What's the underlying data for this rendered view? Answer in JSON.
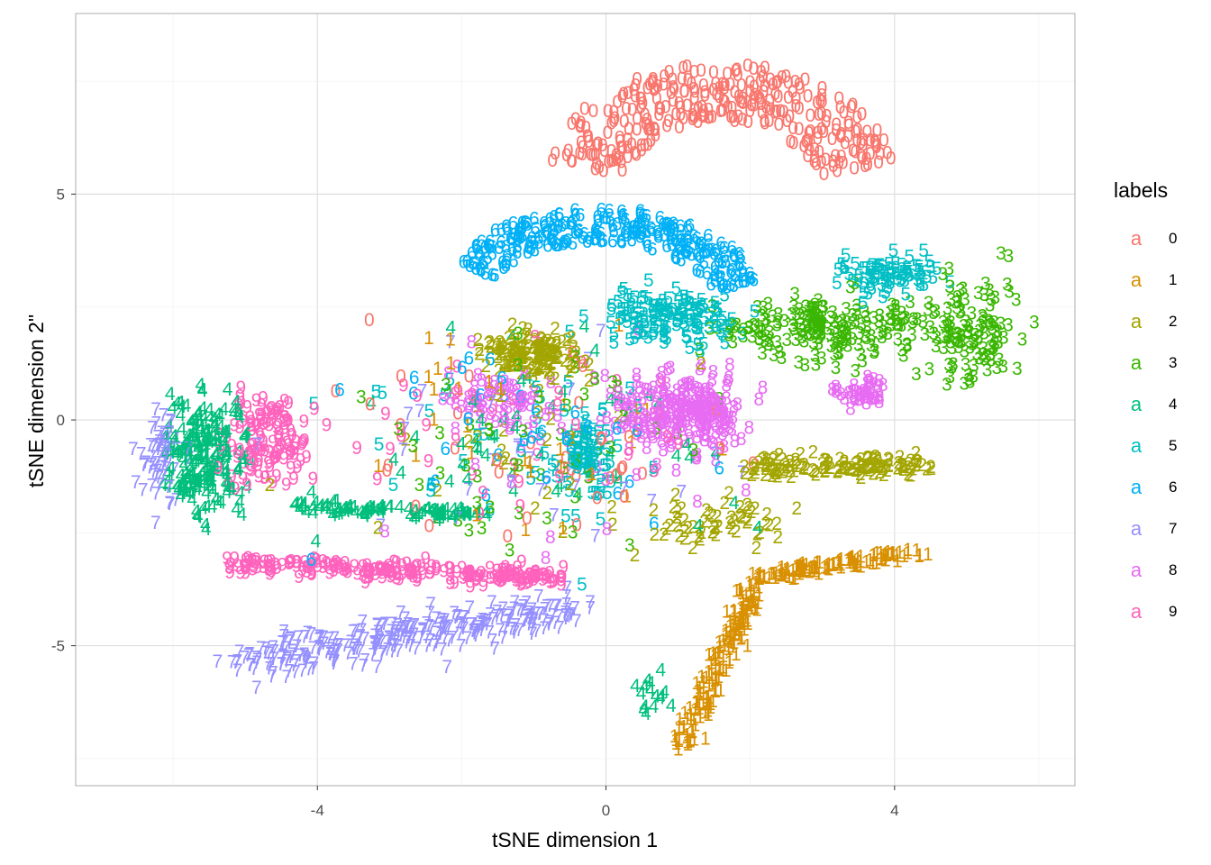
{
  "chart_data": {
    "type": "scatter",
    "marker": "text glyph of the label digit",
    "xlabel": "tSNE dimension 1",
    "ylabel": "tSNE dimension 2\"",
    "xlim": [
      -7.35,
      6.5
    ],
    "ylim": [
      -8.1,
      9.0
    ],
    "x_ticks": [
      -4,
      0,
      4
    ],
    "x_tick_labels": [
      "-4",
      "0",
      "4"
    ],
    "y_ticks": [
      -5,
      0,
      5
    ],
    "y_tick_labels": [
      "-5",
      "0",
      "5"
    ],
    "grid": true,
    "legend": {
      "title": "labels",
      "position": "right",
      "key_glyph": "a",
      "entries": [
        "0",
        "1",
        "2",
        "3",
        "4",
        "5",
        "6",
        "7",
        "8",
        "9"
      ]
    },
    "colors": {
      "0": "#F8766D",
      "1": "#D89000",
      "2": "#A3A500",
      "3": "#39B600",
      "4": "#00BF7D",
      "5": "#00BFC4",
      "6": "#00B0F6",
      "7": "#9590FF",
      "8": "#E76BF3",
      "9": "#FF62BC"
    },
    "clusters": [
      {
        "label": "0",
        "type": "arc",
        "cx": 1.6,
        "cy": 5.0,
        "rx": 2.5,
        "ry": 2.9,
        "a0": 165,
        "a1": 15,
        "thick": 1.3,
        "n": 320
      },
      {
        "label": "6",
        "type": "arc",
        "cx": -0.1,
        "cy": 2.0,
        "rx": 2.5,
        "ry": 2.7,
        "a0": 145,
        "a1": 25,
        "thick": 0.75,
        "n": 260
      },
      {
        "label": "1",
        "type": "band",
        "x0": 1.0,
        "y0": -7.3,
        "x1": 2.1,
        "y1": -3.6,
        "w": 0.5,
        "n": 150
      },
      {
        "label": "1",
        "type": "band",
        "x0": 2.0,
        "y0": -3.5,
        "x1": 4.3,
        "y1": -2.9,
        "w": 0.35,
        "n": 110
      },
      {
        "label": "7",
        "type": "band",
        "x0": -5.0,
        "y0": -5.4,
        "x1": -0.5,
        "y1": -4.2,
        "w": 1.1,
        "n": 300
      },
      {
        "label": "7",
        "type": "blob",
        "cx": -6.2,
        "cy": -0.8,
        "sx": 0.4,
        "sy": 1.0,
        "n": 60
      },
      {
        "label": "9",
        "type": "band",
        "x0": -5.2,
        "y0": -3.2,
        "x1": -0.6,
        "y1": -3.5,
        "w": 0.55,
        "n": 220
      },
      {
        "label": "9",
        "type": "blob",
        "cx": -4.7,
        "cy": -0.5,
        "sx": 0.6,
        "sy": 1.0,
        "n": 120
      },
      {
        "label": "4",
        "type": "blob",
        "cx": -5.6,
        "cy": -0.7,
        "sx": 0.6,
        "sy": 1.3,
        "n": 220
      },
      {
        "label": "4",
        "type": "band",
        "x0": -4.3,
        "y0": -1.9,
        "x1": -1.7,
        "y1": -2.1,
        "w": 0.35,
        "n": 100
      },
      {
        "label": "4",
        "type": "blob",
        "cx": 0.6,
        "cy": -6.2,
        "sx": 0.3,
        "sy": 0.5,
        "n": 16
      },
      {
        "label": "2",
        "type": "blob",
        "cx": -1.0,
        "cy": 1.5,
        "sx": 0.6,
        "sy": 0.5,
        "n": 140
      },
      {
        "label": "2",
        "type": "band",
        "x0": 2.0,
        "y0": -1.0,
        "x1": 4.5,
        "y1": -1.0,
        "w": 0.55,
        "n": 140
      },
      {
        "label": "2",
        "type": "blob",
        "cx": 1.5,
        "cy": -2.2,
        "sx": 1.2,
        "sy": 0.6,
        "n": 60
      },
      {
        "label": "3",
        "type": "blob",
        "cx": 3.2,
        "cy": 2.0,
        "sx": 1.6,
        "sy": 0.7,
        "n": 200
      },
      {
        "label": "3",
        "type": "blob",
        "cx": 5.1,
        "cy": 2.0,
        "sx": 0.6,
        "sy": 1.2,
        "n": 110
      },
      {
        "label": "5",
        "type": "blob",
        "cx": 0.9,
        "cy": 2.3,
        "sx": 1.0,
        "sy": 0.6,
        "n": 140
      },
      {
        "label": "5",
        "type": "blob",
        "cx": 3.9,
        "cy": 3.2,
        "sx": 0.7,
        "sy": 0.5,
        "n": 80
      },
      {
        "label": "5",
        "type": "blob",
        "cx": -0.3,
        "cy": -0.9,
        "sx": 0.35,
        "sy": 0.9,
        "n": 70
      },
      {
        "label": "8",
        "type": "blob",
        "cx": 1.0,
        "cy": 0.2,
        "sx": 0.9,
        "sy": 0.8,
        "n": 230
      },
      {
        "label": "8",
        "type": "blob",
        "cx": 3.6,
        "cy": 0.6,
        "sx": 0.4,
        "sy": 0.3,
        "n": 40
      },
      {
        "label": "8",
        "type": "blob",
        "cx": -1.4,
        "cy": 0.4,
        "sx": 0.7,
        "sy": 0.6,
        "n": 60
      },
      {
        "label": "*",
        "type": "scatter",
        "cx": -1.0,
        "cy": -0.5,
        "sx": 2.6,
        "sy": 2.2,
        "n": 380
      }
    ]
  }
}
